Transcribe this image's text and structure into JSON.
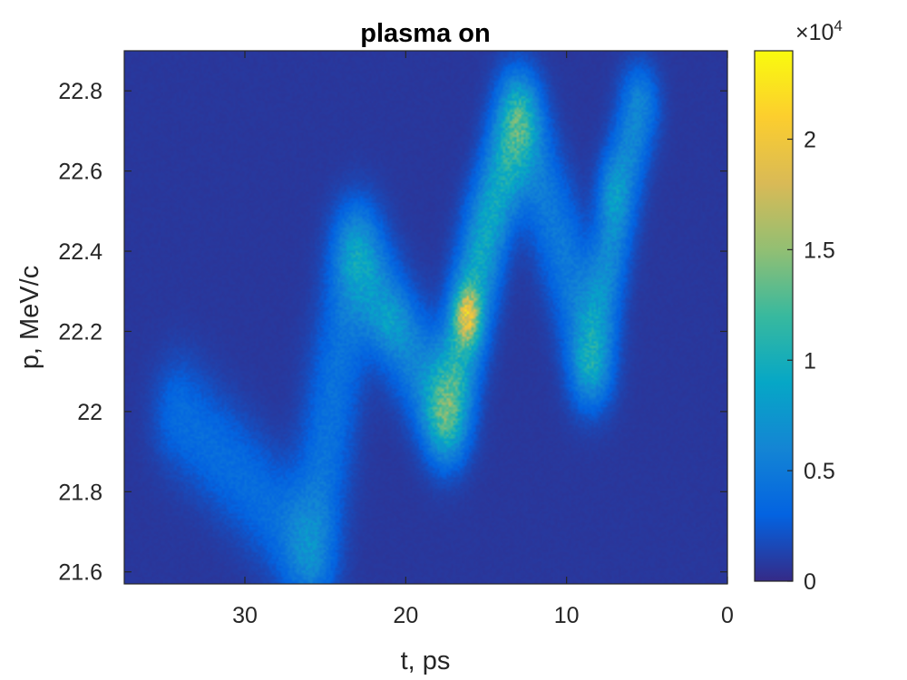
{
  "chart_data": {
    "type": "heatmap",
    "title": "plasma on",
    "xlabel": "t, ps",
    "ylabel": "p, MeV/c",
    "xlim": [
      37.5,
      0
    ],
    "ylim": [
      21.57,
      22.9
    ],
    "x_reversed": true,
    "x_ticks": [
      30,
      20,
      10,
      0
    ],
    "x_tick_labels": [
      "30",
      "20",
      "10",
      "0"
    ],
    "y_ticks": [
      21.6,
      21.8,
      22,
      22.2,
      22.4,
      22.6,
      22.8
    ],
    "y_tick_labels": [
      "21.6",
      "21.8",
      "22",
      "22.2",
      "22.4",
      "22.6",
      "22.8"
    ],
    "colorbar": {
      "min": 0,
      "max": 24000,
      "ticks": [
        0,
        5000,
        10000,
        15000,
        20000
      ],
      "tick_labels": [
        "0",
        "0.5",
        "1",
        "1.5",
        "2"
      ],
      "exponent_label": "×10",
      "exponent_power": "4",
      "colormap": "parula",
      "colormap_stops": [
        "#352a87",
        "#0363e1",
        "#1485d4",
        "#06a7c6",
        "#38b99e",
        "#92bf73",
        "#d9ba56",
        "#fcce2e",
        "#f9fb0e"
      ]
    },
    "background_value": 700,
    "ridges": [
      {
        "points": [
          [
            34,
            21.99
          ],
          [
            31,
            21.87
          ],
          [
            28.5,
            21.76
          ],
          [
            26,
            21.66
          ]
        ],
        "width": 1.1,
        "peak": 3200
      },
      {
        "points": [
          [
            26,
            21.66
          ],
          [
            25,
            21.9
          ],
          [
            24.3,
            22.1
          ],
          [
            23,
            22.38
          ]
        ],
        "width": 1.1,
        "peak": 3600
      },
      {
        "points": [
          [
            23,
            22.38
          ],
          [
            21,
            22.24
          ],
          [
            19,
            22.1
          ],
          [
            17.5,
            22.0
          ]
        ],
        "width": 1.0,
        "peak": 5200
      },
      {
        "points": [
          [
            17.5,
            22.0
          ],
          [
            16.3,
            22.2
          ],
          [
            15,
            22.45
          ],
          [
            13,
            22.72
          ]
        ],
        "width": 0.9,
        "peak": 8500
      },
      {
        "points": [
          [
            13,
            22.72
          ],
          [
            11,
            22.5
          ],
          [
            9.5,
            22.3
          ],
          [
            8.5,
            22.13
          ]
        ],
        "width": 1.0,
        "peak": 4200
      },
      {
        "points": [
          [
            8.5,
            22.13
          ],
          [
            7.5,
            22.35
          ],
          [
            6.5,
            22.58
          ],
          [
            5.5,
            22.76
          ]
        ],
        "width": 0.8,
        "peak": 5500
      }
    ],
    "hotspots": [
      {
        "t": 16.2,
        "p": 22.24,
        "amplitude": 11000,
        "sigma_t": 0.55,
        "sigma_p": 0.05
      },
      {
        "t": 21.0,
        "p": 22.22,
        "amplitude": 2500,
        "sigma_t": 0.8,
        "sigma_p": 0.05
      },
      {
        "t": 7.2,
        "p": 22.55,
        "amplitude": 3000,
        "sigma_t": 0.6,
        "sigma_p": 0.06
      }
    ]
  }
}
